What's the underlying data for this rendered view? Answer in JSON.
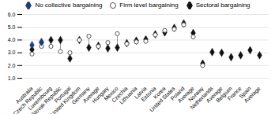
{
  "chart_data": {
    "type": "scatter",
    "categories": [
      "Australia",
      "Czech Republic",
      "Luxembourg",
      "Slovak Republic",
      "Portugal",
      "United Kingdom",
      "Germany",
      "Average",
      "Hungary",
      "Mexico",
      "Czechia",
      "Lithuania",
      "Latvia",
      "Estonia",
      "Korea",
      "United States",
      "Poland",
      "Average",
      "Norway",
      "Netherlands",
      "Average",
      "Belgium",
      "France",
      "Spain",
      "Average"
    ],
    "series": [
      {
        "name": "No collective bargaining",
        "color": "#1f3d7a",
        "marker": "diamond",
        "values": [
          3.6,
          3.85,
          null,
          null,
          null,
          null,
          null,
          null,
          null,
          null,
          null,
          null,
          null,
          null,
          null,
          null,
          null,
          null,
          null,
          null,
          null,
          null,
          null,
          null,
          null
        ]
      },
      {
        "name": "Firm level bargaining",
        "color": "#555555",
        "marker": "circle",
        "values": [
          2.9,
          3.5,
          3.5,
          3.1,
          3.0,
          4.0,
          4.3,
          3.5,
          3.8,
          4.5,
          3.7,
          3.85,
          3.9,
          4.4,
          4.75,
          4.85,
          5.2,
          4.25,
          2.0,
          null,
          null,
          null,
          null,
          null,
          null
        ]
      },
      {
        "name": "Sectoral bargaining",
        "color": "#111111",
        "marker": "diamond",
        "values": [
          3.25,
          3.8,
          4.0,
          4.0,
          2.55,
          4.0,
          3.4,
          3.55,
          3.35,
          3.4,
          3.75,
          3.95,
          4.05,
          4.45,
          4.6,
          4.95,
          5.3,
          4.55,
          2.15,
          3.05,
          3.0,
          2.65,
          2.8,
          3.2,
          2.8
        ]
      }
    ],
    "ylim": [
      1,
      6
    ],
    "yticks": [
      1,
      2,
      3,
      4,
      5,
      6
    ],
    "grid": true,
    "legend": "top"
  }
}
